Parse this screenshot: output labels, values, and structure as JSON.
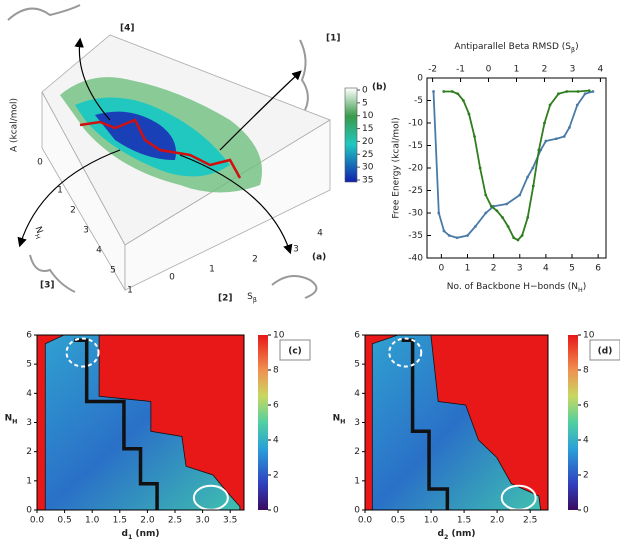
{
  "chart_data": [
    {
      "type": "surface3d",
      "label": "(a)",
      "z_label": "A (kcal/mol)",
      "y_label": [
        "N",
        "H"
      ],
      "x_label": [
        "S",
        "β"
      ],
      "y_ticks": [
        "0",
        "1",
        "2",
        "3",
        "4",
        "5"
      ],
      "x_ticks": [
        "1",
        "0",
        "1",
        "2",
        "3",
        "4"
      ],
      "colorbar_ticks": [
        0,
        5,
        10,
        15,
        20,
        25,
        30,
        35
      ],
      "structures": [
        "[1]",
        "[2]",
        "[3]",
        "[4]"
      ]
    },
    {
      "type": "line",
      "label": "(b)",
      "title": [
        "Antiparallel Beta RMSD (S",
        "β",
        ")"
      ],
      "x_label": [
        "No. of Backbone H−bonds (N",
        "H",
        ")"
      ],
      "y_label": "Free Energy (kcal/mol)",
      "xlim": [
        -0.55,
        6.3
      ],
      "xticks": [
        0,
        1,
        2,
        3,
        4,
        5,
        6
      ],
      "x2lim": [
        -2.2,
        4.2
      ],
      "x2ticks": [
        -2,
        -1,
        0,
        1,
        2,
        3,
        4
      ],
      "ylim": [
        -40,
        0
      ],
      "yticks": [
        0,
        -5,
        -10,
        -15,
        -20,
        -25,
        -30,
        -35,
        -40
      ],
      "series": [
        {
          "color": "#4a7aa6",
          "x": [
            -0.3,
            -0.1,
            0.1,
            0.3,
            0.6,
            1.0,
            1.3,
            1.7,
            2.0,
            2.5,
            3.0,
            3.3,
            3.5,
            3.8,
            4.0,
            4.4,
            4.7,
            4.9,
            5.2,
            5.5,
            5.8
          ],
          "values": [
            -3,
            -30,
            -34,
            -35,
            -35.5,
            -35,
            -33,
            -30,
            -28.5,
            -28,
            -26,
            -22,
            -20,
            -16,
            -14,
            -13.5,
            -13,
            -11,
            -6,
            -3.5,
            -3
          ]
        },
        {
          "color": "#2e7d1e",
          "axis": "x2",
          "x": [
            -1.6,
            -1.3,
            -1.1,
            -0.9,
            -0.7,
            -0.5,
            -0.3,
            -0.1,
            0.1,
            0.3,
            0.5,
            0.7,
            0.9,
            1.05,
            1.2,
            1.4,
            1.6,
            1.8,
            2.0,
            2.2,
            2.5,
            2.8,
            3.2,
            3.6
          ],
          "values": [
            -3,
            -3,
            -3.5,
            -5,
            -8,
            -13,
            -20,
            -26,
            -28.5,
            -29.5,
            -31,
            -33,
            -35.5,
            -36,
            -35,
            -31,
            -24,
            -16,
            -10,
            -6,
            -3.5,
            -3,
            -3,
            -2.8
          ]
        }
      ]
    },
    {
      "type": "heatmap",
      "label": "(c)",
      "x_label": [
        "d",
        "1",
        " (nm)"
      ],
      "y_label": [
        "N",
        "H"
      ],
      "xlim": [
        0,
        3.75
      ],
      "xticks": [
        {
          "value": 0,
          "label": "0.0"
        },
        0.5,
        {
          "value": 1,
          "label": "1.0"
        },
        1.5,
        {
          "value": 2,
          "label": "2.0"
        },
        2.5,
        {
          "value": 3,
          "label": "3.0"
        },
        3.5
      ],
      "ylim": [
        0,
        6
      ],
      "yticks": [
        0,
        1,
        2,
        3,
        4,
        5,
        6
      ],
      "colorbar_lim": [
        0,
        10
      ],
      "colorbar_ticks": [
        0,
        2,
        4,
        6,
        8,
        10
      ]
    },
    {
      "type": "heatmap",
      "label": "(d)",
      "x_label": [
        "d",
        "2",
        " (nm)"
      ],
      "y_label": [
        "N",
        "H"
      ],
      "xlim": [
        0,
        2.77
      ],
      "xticks": [
        {
          "value": 0,
          "label": "0.0"
        },
        0.5,
        {
          "value": 1,
          "label": "1.0"
        },
        1.5,
        {
          "value": 2,
          "label": "2.0"
        },
        2.5
      ],
      "ylim": [
        0,
        6
      ],
      "yticks": [
        0,
        1,
        2,
        3,
        4,
        5,
        6
      ],
      "colorbar_lim": [
        0,
        10
      ],
      "colorbar_ticks": [
        0,
        2,
        4,
        6,
        8,
        10
      ]
    }
  ]
}
